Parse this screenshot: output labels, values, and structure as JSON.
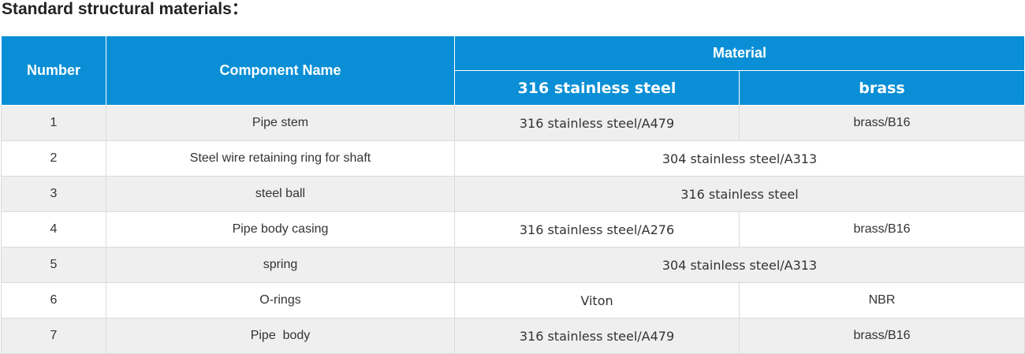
{
  "title": "Standard structural materials：",
  "header": {
    "number": "Number",
    "component": "Component Name",
    "material": "Material",
    "col_ss": "316 stainless steel",
    "col_brass": "brass"
  },
  "rows": [
    {
      "number": "1",
      "component": "Pipe stem",
      "ss": "316 stainless steel/A479",
      "brass": "brass/B16"
    },
    {
      "number": "2",
      "component": "Steel wire retaining ring for shaft",
      "merged": "304 stainless steel/A313"
    },
    {
      "number": "3",
      "component": "steel ball",
      "merged": "316 stainless steel"
    },
    {
      "number": "4",
      "component": "Pipe body casing",
      "ss": "316 stainless steel/A276",
      "brass": "brass/B16"
    },
    {
      "number": "5",
      "component": "spring",
      "merged": "304 stainless steel/A313"
    },
    {
      "number": "6",
      "component": "O-rings",
      "ss": "Viton",
      "brass": "NBR"
    },
    {
      "number": "7",
      "component": "Pipe  body",
      "ss": "316 stainless steel/A479",
      "brass": "brass/B16"
    }
  ]
}
